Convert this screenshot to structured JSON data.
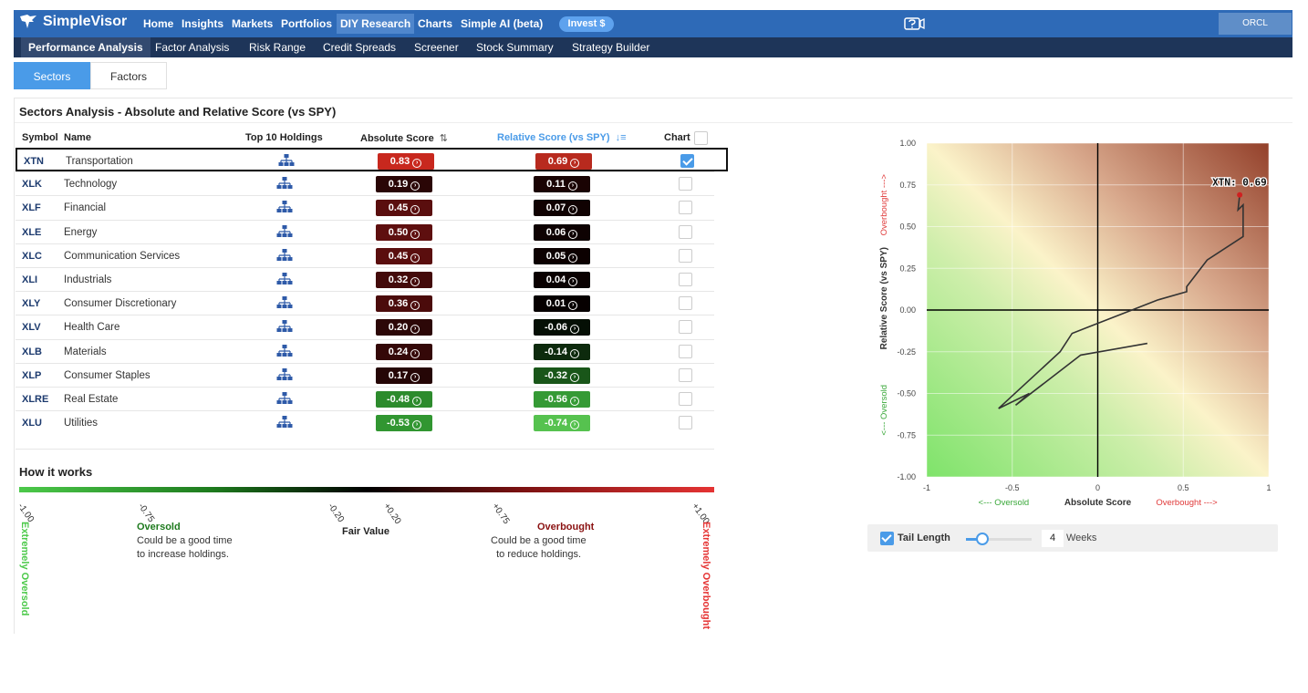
{
  "topnav": {
    "brand": "SimpleVisor",
    "items": [
      "Home",
      "Insights",
      "Markets",
      "Portfolios",
      "DIY Research",
      "Charts",
      "Simple AI (beta)"
    ],
    "active": "DIY Research",
    "invest_label": "Invest $",
    "ticker": "ORCL"
  },
  "subnav": {
    "items": [
      "Performance Analysis",
      "Factor Analysis",
      "Risk Range",
      "Credit Spreads",
      "Screener",
      "Stock Summary",
      "Strategy Builder"
    ],
    "active": "Performance Analysis"
  },
  "tabs": [
    "Sectors",
    "Factors"
  ],
  "section_title": "Sectors Analysis - Absolute and Relative Score (vs SPY)",
  "table": {
    "headers": {
      "symbol": "Symbol",
      "name": "Name",
      "holdings": "Top 10 Holdings",
      "absolute": "Absolute Score",
      "relative": "Relative Score (vs SPY)",
      "chart": "Chart"
    },
    "rows": [
      {
        "symbol": "XTN",
        "name": "Transportation",
        "abs": "0.83",
        "rel": "0.69",
        "abs_color": "#c8281e",
        "rel_color": "#b82a1e",
        "checked": true
      },
      {
        "symbol": "XLK",
        "name": "Technology",
        "abs": "0.19",
        "rel": "0.11",
        "abs_color": "#2a0606",
        "rel_color": "#1a0303",
        "checked": false
      },
      {
        "symbol": "XLF",
        "name": "Financial",
        "abs": "0.45",
        "rel": "0.07",
        "abs_color": "#5a0e0e",
        "rel_color": "#100202",
        "checked": false
      },
      {
        "symbol": "XLE",
        "name": "Energy",
        "abs": "0.50",
        "rel": "0.06",
        "abs_color": "#5e0f0f",
        "rel_color": "#0e0202",
        "checked": false
      },
      {
        "symbol": "XLC",
        "name": "Communication Services",
        "abs": "0.45",
        "rel": "0.05",
        "abs_color": "#5a0e0e",
        "rel_color": "#0c0101",
        "checked": false
      },
      {
        "symbol": "XLI",
        "name": "Industrials",
        "abs": "0.32",
        "rel": "0.04",
        "abs_color": "#430a0a",
        "rel_color": "#0a0101",
        "checked": false
      },
      {
        "symbol": "XLY",
        "name": "Consumer Discretionary",
        "abs": "0.36",
        "rel": "0.01",
        "abs_color": "#4b0b0b",
        "rel_color": "#060000",
        "checked": false
      },
      {
        "symbol": "XLV",
        "name": "Health Care",
        "abs": "0.20",
        "rel": "-0.06",
        "abs_color": "#2c0707",
        "rel_color": "#050f05",
        "checked": false
      },
      {
        "symbol": "XLB",
        "name": "Materials",
        "abs": "0.24",
        "rel": "-0.14",
        "abs_color": "#340808",
        "rel_color": "#0d2a0d",
        "checked": false
      },
      {
        "symbol": "XLP",
        "name": "Consumer Staples",
        "abs": "0.17",
        "rel": "-0.32",
        "abs_color": "#250606",
        "rel_color": "#195619",
        "checked": false
      },
      {
        "symbol": "XLRE",
        "name": "Real Estate",
        "abs": "-0.48",
        "rel": "-0.56",
        "abs_color": "#2d8b2d",
        "rel_color": "#359a35",
        "checked": false
      },
      {
        "symbol": "XLU",
        "name": "Utilities",
        "abs": "-0.53",
        "rel": "-0.74",
        "abs_color": "#319631",
        "rel_color": "#56c24f",
        "checked": false
      }
    ]
  },
  "how_it_works": {
    "title": "How it works",
    "scale": [
      "-1.00",
      "-0.75",
      "-0.20",
      "+0.20",
      "+0.75",
      "+1.00"
    ],
    "oversold_title": "Oversold",
    "oversold_text": "Could be a good time\nto increase holdings.",
    "fair_value": "Fair Value",
    "overbought_title": "Overbought",
    "overbought_text": "Could be a good time\n  to reduce holdings.",
    "extremely_oversold": "Extremely Oversold",
    "extremely_overbought": "Extremely Overbought"
  },
  "chart_data": {
    "type": "scatter",
    "x_label_left": "<--- Oversold",
    "x_label": "Absolute Score",
    "x_label_right": "Overbought --->",
    "y_label_bottom": "<--- Oversold",
    "y_label": "Relative Score (vs SPY)",
    "y_label_top": "Overbought --->",
    "xlim": [
      -1,
      1
    ],
    "ylim": [
      -1,
      1
    ],
    "x_ticks": [
      "-1",
      "-0.5",
      "0",
      "0.5",
      "1"
    ],
    "y_ticks": [
      "1.00",
      "0.75",
      "0.50",
      "0.25",
      "0.00",
      "-0.25",
      "-0.50",
      "-0.75",
      "-1.00"
    ],
    "grid": true,
    "series": [
      {
        "name": "XTN",
        "label": "XTN: 0.69",
        "color": "#333333",
        "point_color": "#d02020",
        "points": [
          [
            0.29,
            -0.2
          ],
          [
            -0.1,
            -0.27
          ],
          [
            -0.48,
            -0.57
          ],
          [
            -0.4,
            -0.5
          ],
          [
            -0.58,
            -0.59
          ],
          [
            -0.22,
            -0.25
          ],
          [
            -0.15,
            -0.14
          ],
          [
            -0.05,
            -0.1
          ],
          [
            0.2,
            0.0
          ],
          [
            0.35,
            0.06
          ],
          [
            0.52,
            0.11
          ],
          [
            0.52,
            0.14
          ],
          [
            0.64,
            0.3
          ],
          [
            0.85,
            0.44
          ],
          [
            0.85,
            0.63
          ],
          [
            0.82,
            0.6
          ],
          [
            0.83,
            0.69
          ]
        ]
      }
    ]
  },
  "tail": {
    "label": "Tail Length",
    "value": "4",
    "unit": "Weeks",
    "fraction": 0.25
  }
}
